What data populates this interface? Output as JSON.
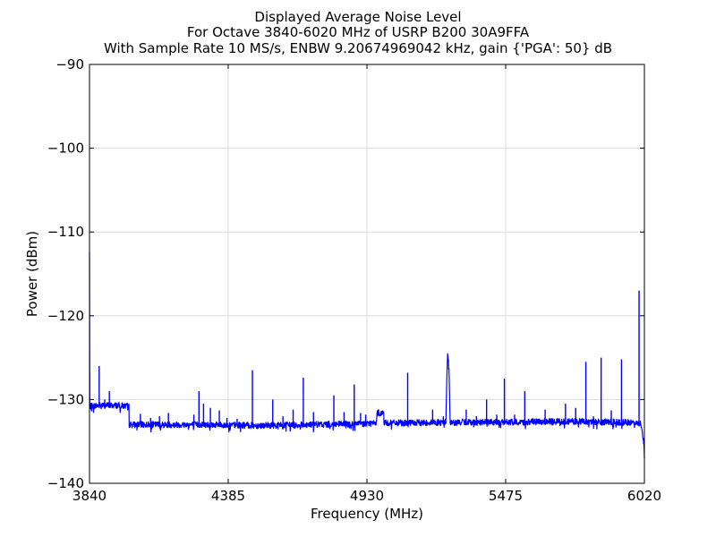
{
  "chart_data": {
    "type": "line",
    "title_lines": [
      "Displayed Average Noise Level",
      "For Octave 3840-6020 MHz of USRP B200 30A9FFA",
      "With Sample Rate 10 MS/s, ENBW 9.20674969042 kHz, gain {'PGA': 50} dB"
    ],
    "xlabel": "Frequency (MHz)",
    "ylabel": "Power (dBm)",
    "xlim": [
      3840,
      6020
    ],
    "ylim": [
      -140,
      -90
    ],
    "xticks": [
      3840,
      4385,
      4930,
      5475,
      6020
    ],
    "xtick_labels": [
      "3840",
      "4385",
      "4930",
      "5475",
      "6020"
    ],
    "yticks": [
      -140,
      -130,
      -120,
      -110,
      -100,
      -90
    ],
    "ytick_labels": [
      "−140",
      "−130",
      "−120",
      "−110",
      "−100",
      "−90"
    ],
    "grid": true,
    "line_color": "#0000ff",
    "series": [
      {
        "x": [
          3840,
          3841,
          3842,
          3843,
          3880,
          3950,
          3995,
          3996,
          4100,
          4300,
          4500,
          4700,
          4900,
          4968,
          4969,
          4996,
          4997,
          5100,
          5240,
          5244,
          5247,
          5250,
          5253,
          5257,
          5262,
          5300,
          5500,
          5700,
          5900,
          6000,
          6005,
          6010,
          6015,
          6018,
          6020
        ],
        "y": [
          -112.5,
          -130.5,
          -130.8,
          -130.8,
          -130.7,
          -130.7,
          -130.8,
          -133.0,
          -133.0,
          -133.0,
          -133.1,
          -133.0,
          -132.9,
          -132.8,
          -131.6,
          -131.6,
          -132.8,
          -132.8,
          -132.7,
          -127.0,
          -124.5,
          -125.5,
          -127.0,
          -132.8,
          -132.8,
          -132.7,
          -132.7,
          -132.6,
          -132.7,
          -132.8,
          -132.9,
          -133.5,
          -134.5,
          -135.5,
          -137.0
        ]
      }
    ],
    "spikes": [
      {
        "x": 3878,
        "y": -126.0
      },
      {
        "x": 3900,
        "y": -130.0
      },
      {
        "x": 3918,
        "y": -129.0
      },
      {
        "x": 4040,
        "y": -131.7
      },
      {
        "x": 4080,
        "y": -132.2
      },
      {
        "x": 4115,
        "y": -132.0
      },
      {
        "x": 4150,
        "y": -131.6
      },
      {
        "x": 4250,
        "y": -131.8
      },
      {
        "x": 4270,
        "y": -129.0
      },
      {
        "x": 4288,
        "y": -130.5
      },
      {
        "x": 4315,
        "y": -131.0
      },
      {
        "x": 4350,
        "y": -131.3
      },
      {
        "x": 4380,
        "y": -132.2
      },
      {
        "x": 4420,
        "y": -132.3
      },
      {
        "x": 4480,
        "y": -126.5
      },
      {
        "x": 4560,
        "y": -130.0
      },
      {
        "x": 4600,
        "y": -132.0
      },
      {
        "x": 4640,
        "y": -131.2
      },
      {
        "x": 4680,
        "y": -127.4
      },
      {
        "x": 4720,
        "y": -131.5
      },
      {
        "x": 4800,
        "y": -129.5
      },
      {
        "x": 4840,
        "y": -131.5
      },
      {
        "x": 4880,
        "y": -128.2
      },
      {
        "x": 4905,
        "y": -131.6
      },
      {
        "x": 4925,
        "y": -131.8
      },
      {
        "x": 5090,
        "y": -126.8
      },
      {
        "x": 5188,
        "y": -131.2
      },
      {
        "x": 5230,
        "y": -132.0
      },
      {
        "x": 5320,
        "y": -131.2
      },
      {
        "x": 5360,
        "y": -132.0
      },
      {
        "x": 5400,
        "y": -130.0
      },
      {
        "x": 5440,
        "y": -131.8
      },
      {
        "x": 5470,
        "y": -127.5
      },
      {
        "x": 5510,
        "y": -131.8
      },
      {
        "x": 5550,
        "y": -129.0
      },
      {
        "x": 5630,
        "y": -131.2
      },
      {
        "x": 5710,
        "y": -130.5
      },
      {
        "x": 5750,
        "y": -131.0
      },
      {
        "x": 5790,
        "y": -125.5
      },
      {
        "x": 5820,
        "y": -132.0
      },
      {
        "x": 5850,
        "y": -125.0
      },
      {
        "x": 5890,
        "y": -131.3
      },
      {
        "x": 5930,
        "y": -125.2
      },
      {
        "x": 5999,
        "y": -117.0
      }
    ]
  }
}
